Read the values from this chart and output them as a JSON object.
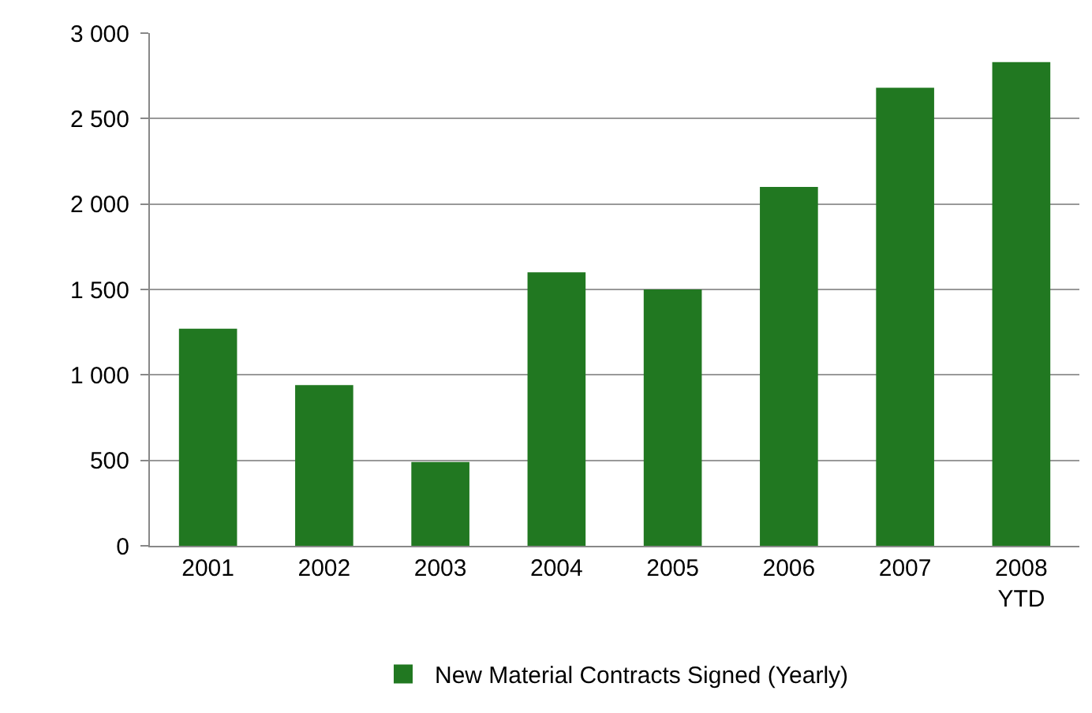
{
  "chart_data": {
    "type": "bar",
    "categories": [
      "2001",
      "2002",
      "2003",
      "2004",
      "2005",
      "2006",
      "2007",
      "2008\nYTD"
    ],
    "series": [
      {
        "name": "New Material Contracts Signed (Yearly)",
        "color": "#217821",
        "values": [
          1270,
          940,
          490,
          1600,
          1500,
          2100,
          2680,
          2830
        ]
      }
    ],
    "ylim": [
      0,
      3000
    ],
    "yticks": [
      0,
      500,
      {
        "value": 1000,
        "label": "1 000"
      },
      {
        "value": 1500,
        "label": "1 500"
      },
      {
        "value": 2000,
        "label": "2 000"
      },
      {
        "value": 2500,
        "label": "2 500"
      },
      {
        "value": 3000,
        "label": "3 000"
      }
    ],
    "grid": "y",
    "legend": "bottom"
  }
}
